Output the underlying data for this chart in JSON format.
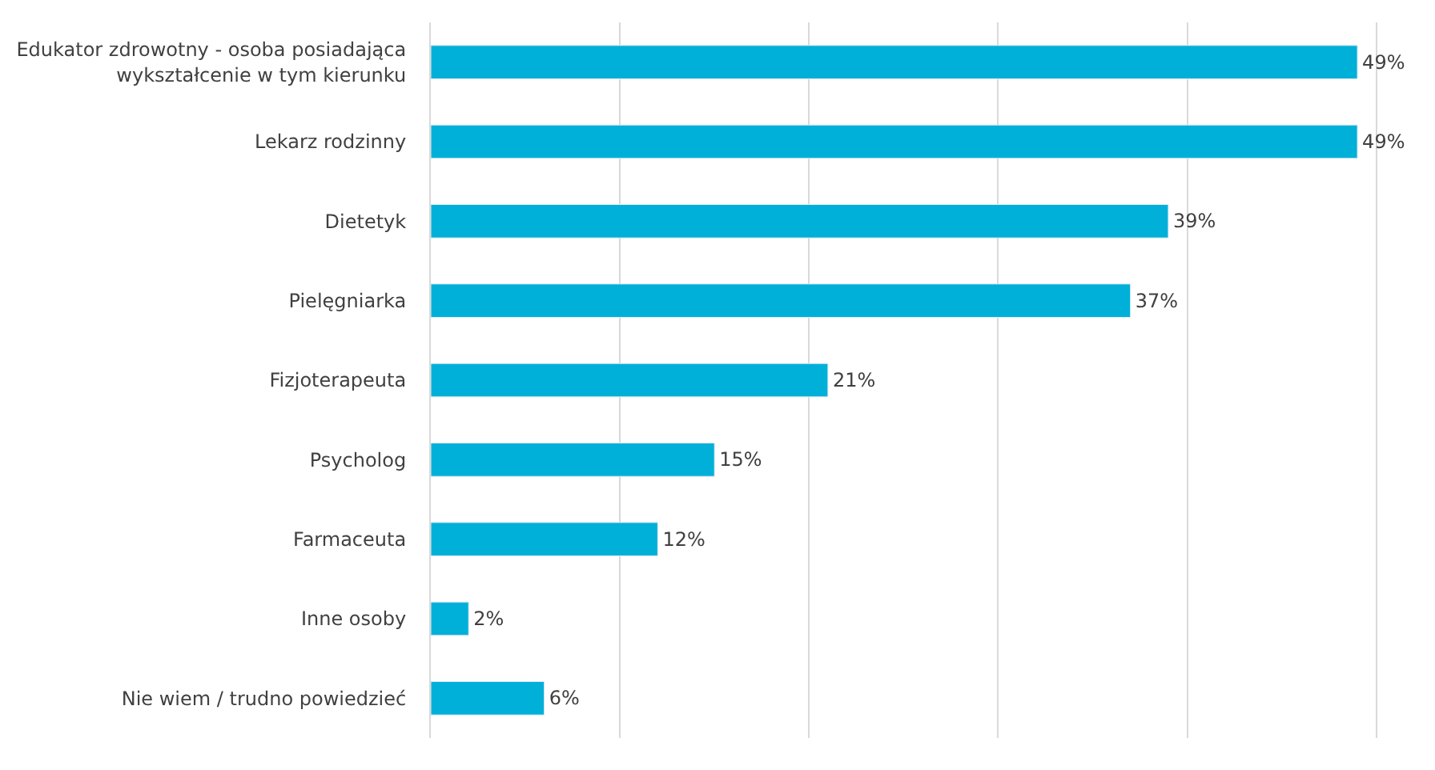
{
  "chart_data": {
    "type": "bar",
    "orientation": "horizontal",
    "categories": [
      "Edukator zdrowotny - osoba posiadająca wykształcenie w tym kierunku",
      "Lekarz rodzinny",
      "Dietetyk",
      "Pielęgniarka",
      "Fizjoterapeuta",
      "Psycholog",
      "Farmaceuta",
      "Inne osoby",
      "Nie wiem / trudno powiedzieć"
    ],
    "values": [
      49,
      49,
      39,
      37,
      21,
      15,
      12,
      2,
      6
    ],
    "value_labels": [
      "49%",
      "49%",
      "39%",
      "37%",
      "21%",
      "15%",
      "12%",
      "2%",
      "6%"
    ],
    "color": "#00b0d8",
    "grid": "x",
    "tick_labels": "y"
  }
}
